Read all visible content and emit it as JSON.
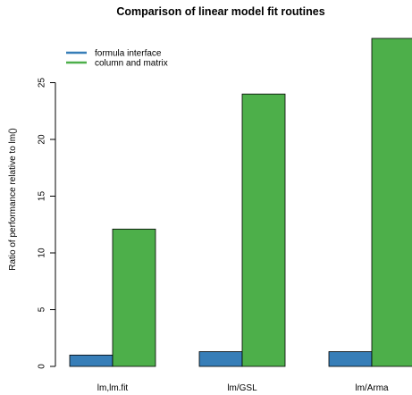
{
  "chart_data": {
    "type": "bar",
    "title": "Comparison of linear model fit routines",
    "xlabel": "",
    "ylabel": "Ratio of performance relative to lm()",
    "categories": [
      "lm,lm.fit",
      "lm/GSL",
      "lm/Arma"
    ],
    "series": [
      {
        "name": "formula interface",
        "values": [
          1.0,
          1.3,
          1.3
        ],
        "color": "#377EB8"
      },
      {
        "name": "column and matrix",
        "values": [
          12.1,
          24.0,
          28.9
        ],
        "color": "#4DAF4A"
      }
    ],
    "ylim": [
      0,
      29
    ],
    "yticks": [
      0,
      5,
      10,
      15,
      20,
      25
    ],
    "grid": false,
    "legend_position": "top-left"
  }
}
